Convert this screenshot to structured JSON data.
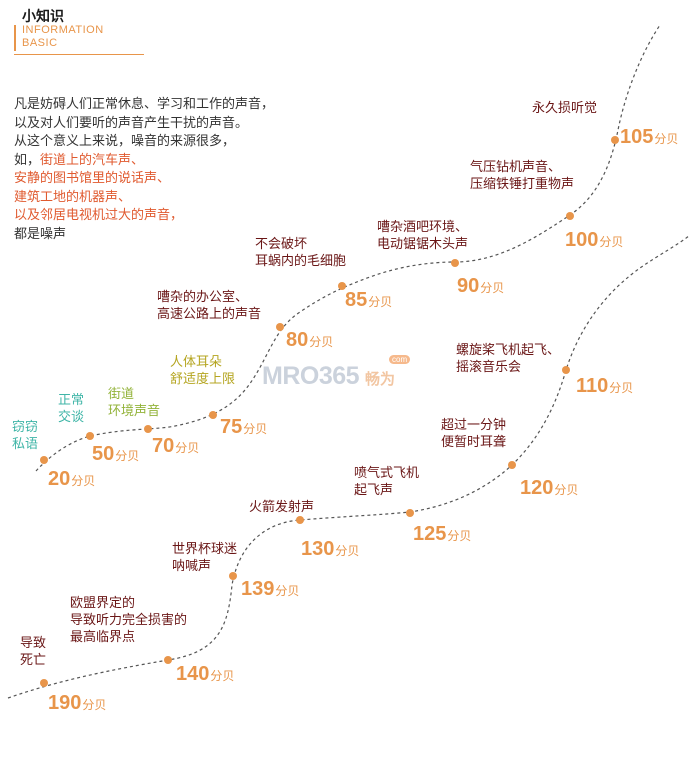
{
  "header": {
    "title": "小知识",
    "subtitle_line1": "INFORMATION",
    "subtitle_line2": "BASIC"
  },
  "intro": {
    "line1": "凡是妨碍人们正常休息、学习和工作的声音，",
    "line2": "以及对人们要听的声音产生干扰的声音。",
    "line3": "从这个意义上来说，噪音的来源很多，",
    "line4_prefix": "如，",
    "line4_highlight": "街道上的汽车声、",
    "line5": "安静的图书馆里的说话声、",
    "line6": "建筑工地的机器声、",
    "line7": "以及邻居电视机过大的声音，",
    "line8": "都是噪声"
  },
  "watermark": {
    "main": "MRO365",
    "com": "com",
    "cn": "畅为"
  },
  "unit": "分贝",
  "colors": {
    "value": "#e8954a",
    "label": "#6a1616",
    "highlight": "#e05a2f",
    "path": "#555555"
  },
  "levels": [
    {
      "key": "20",
      "label": [
        "窃窃",
        "私语"
      ],
      "value": "20",
      "color": "#3fb5a7"
    },
    {
      "key": "50",
      "label": [
        "正常",
        "交谈"
      ],
      "value": "50",
      "color": "#3fb5a7"
    },
    {
      "key": "70",
      "label": [
        "街道",
        "环境声音"
      ],
      "value": "70",
      "color": "#93b33a"
    },
    {
      "key": "75",
      "label": [
        "人体耳朵",
        "舒适度上限"
      ],
      "value": "75",
      "color": "#b5a520"
    },
    {
      "key": "80",
      "label": [
        "嘈杂的办公室、",
        "高速公路上的声音"
      ],
      "value": "80",
      "color": "#6a1616"
    },
    {
      "key": "85",
      "label": [
        "不会破坏",
        "耳蜗内的毛细胞"
      ],
      "value": "85",
      "color": "#6a1616"
    },
    {
      "key": "90",
      "label": [
        "嘈杂酒吧环境、",
        "电动锯锯木头声"
      ],
      "value": "90",
      "color": "#6a1616"
    },
    {
      "key": "100",
      "label": [
        "气压钻机声音、",
        "压缩铁锤打重物声"
      ],
      "value": "100",
      "color": "#6a1616"
    },
    {
      "key": "105",
      "label": [
        "永久损听觉"
      ],
      "value": "105",
      "color": "#6a1616"
    },
    {
      "key": "110",
      "label": [
        "螺旋桨飞机起飞、",
        "摇滚音乐会"
      ],
      "value": "110",
      "color": "#6a1616"
    },
    {
      "key": "120",
      "label": [
        "超过一分钟",
        "便暂时耳聋"
      ],
      "value": "120",
      "color": "#6a1616"
    },
    {
      "key": "125",
      "label": [
        "喷气式飞机",
        "起飞声"
      ],
      "value": "125",
      "color": "#6a1616"
    },
    {
      "key": "130",
      "label": [
        "火箭发射声"
      ],
      "value": "130",
      "color": "#6a1616"
    },
    {
      "key": "139",
      "label": [
        "世界杯球迷",
        "呐喊声"
      ],
      "value": "139",
      "color": "#6a1616"
    },
    {
      "key": "140",
      "label": [
        "欧盟界定的",
        "导致听力完全损害的",
        "最高临界点"
      ],
      "value": "140",
      "color": "#6a1616"
    },
    {
      "key": "190",
      "label": [
        "导致",
        "死亡"
      ],
      "value": "190",
      "color": "#6a1616"
    }
  ]
}
